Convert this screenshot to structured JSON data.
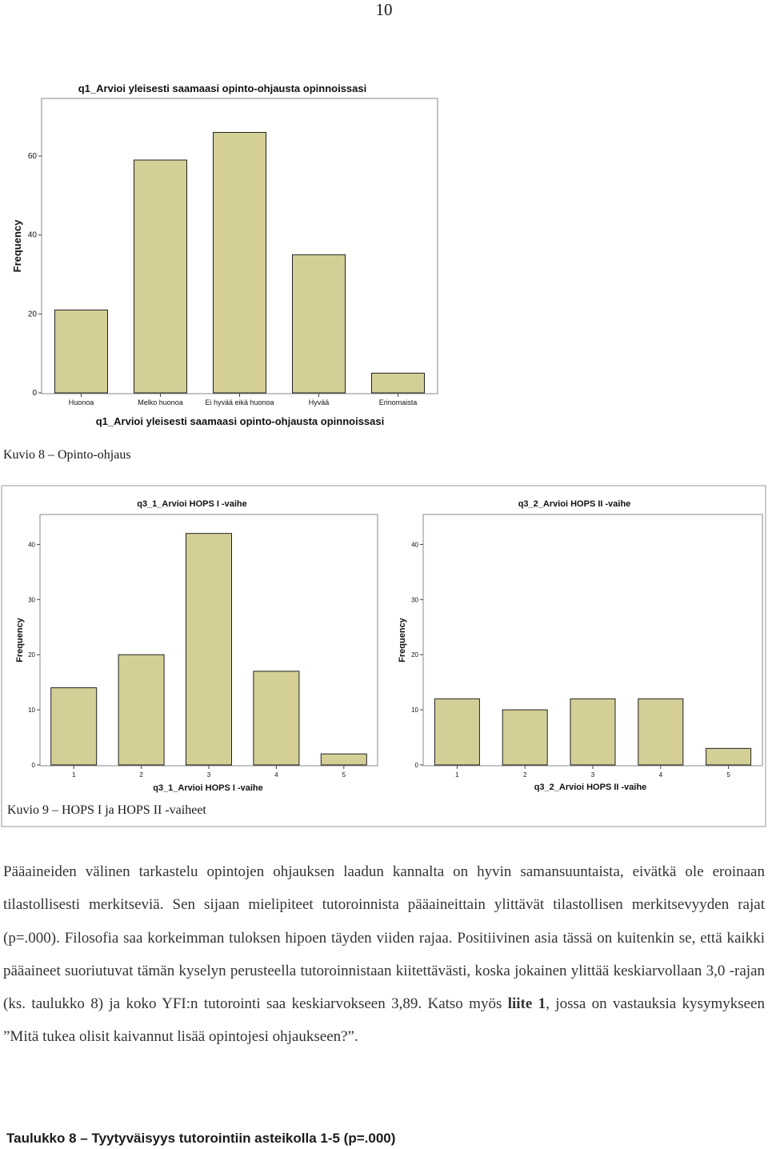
{
  "page_number": "10",
  "figure8": {
    "caption": "Kuvio 8 – Opinto-ohjaus"
  },
  "figure9": {
    "caption": "Kuvio 9 – HOPS I ja HOPS II -vaiheet"
  },
  "chart_data": [
    {
      "type": "bar",
      "title": "q1_Arvioi yleisesti saamaasi opinto-ohjausta opinnoissasi",
      "xlabel": "q1_Arvioi yleisesti saamaasi opinto-ohjausta opinnoissasi",
      "ylabel": "Frequency",
      "categories": [
        "Huonoa",
        "Melko huonoa",
        "Ei hyvää eikä huonoa",
        "Hyvää",
        "Erinomaista"
      ],
      "values": [
        21,
        59,
        66,
        35,
        5
      ],
      "yticks": [
        0,
        20,
        40,
        60
      ],
      "ylim": [
        0,
        74
      ]
    },
    {
      "type": "bar",
      "title": "q3_1_Arvioi HOPS I -vaihe",
      "xlabel": "q3_1_Arvioi HOPS I -vaihe",
      "ylabel": "Frequency",
      "categories": [
        "1",
        "2",
        "3",
        "4",
        "5"
      ],
      "values": [
        14,
        20,
        42,
        17,
        2
      ],
      "yticks": [
        0,
        10,
        20,
        30,
        40
      ],
      "ylim": [
        0,
        45
      ]
    },
    {
      "type": "bar",
      "title": "q3_2_Arvioi HOPS II -vaihe",
      "xlabel": "q3_2_Arvioi HOPS II -vaihe",
      "ylabel": "Frequency",
      "categories": [
        "1",
        "2",
        "3",
        "4",
        "5"
      ],
      "values": [
        12,
        10,
        12,
        12,
        3
      ],
      "yticks": [
        0,
        10,
        20,
        30,
        40
      ],
      "ylim": [
        0,
        45
      ]
    }
  ],
  "body": {
    "line1": "Pääaineiden välinen tarkastelu opintojen ohjauksen laadun kannalta on hyvin samansuuntaista, eivätkä ole eroinaan tilastollisesti merkitseviä. Sen sijaan mielipiteet tutoroinnista pääaineittain ylittävät tilastollisen merkitsevyyden rajat (p=.000). Filosofia saa korkeimman tuloksen hipoen täyden viiden rajaa. Positiivinen asia tässä on kuitenkin se, että kaikki pääaineet suoriutuvat tämän kyselyn perusteella tutoroinnistaan kiitettävästi, koska jokainen ylittää keskiarvollaan 3,0 -rajan (ks. taulukko 8) ja koko YFI:n tutorointi saa keskiarvokseen 3,89. Katso myös ",
    "bold": "liite 1",
    "line2": ", jossa on vastauksia kysymykseen ”Mitä tukea olisit kaivannut lisää opintojesi ohjaukseen?”."
  },
  "table_caption": "Taulukko 8 – Tyytyväisyys tutorointiin asteikolla 1-5 (p=.000)"
}
